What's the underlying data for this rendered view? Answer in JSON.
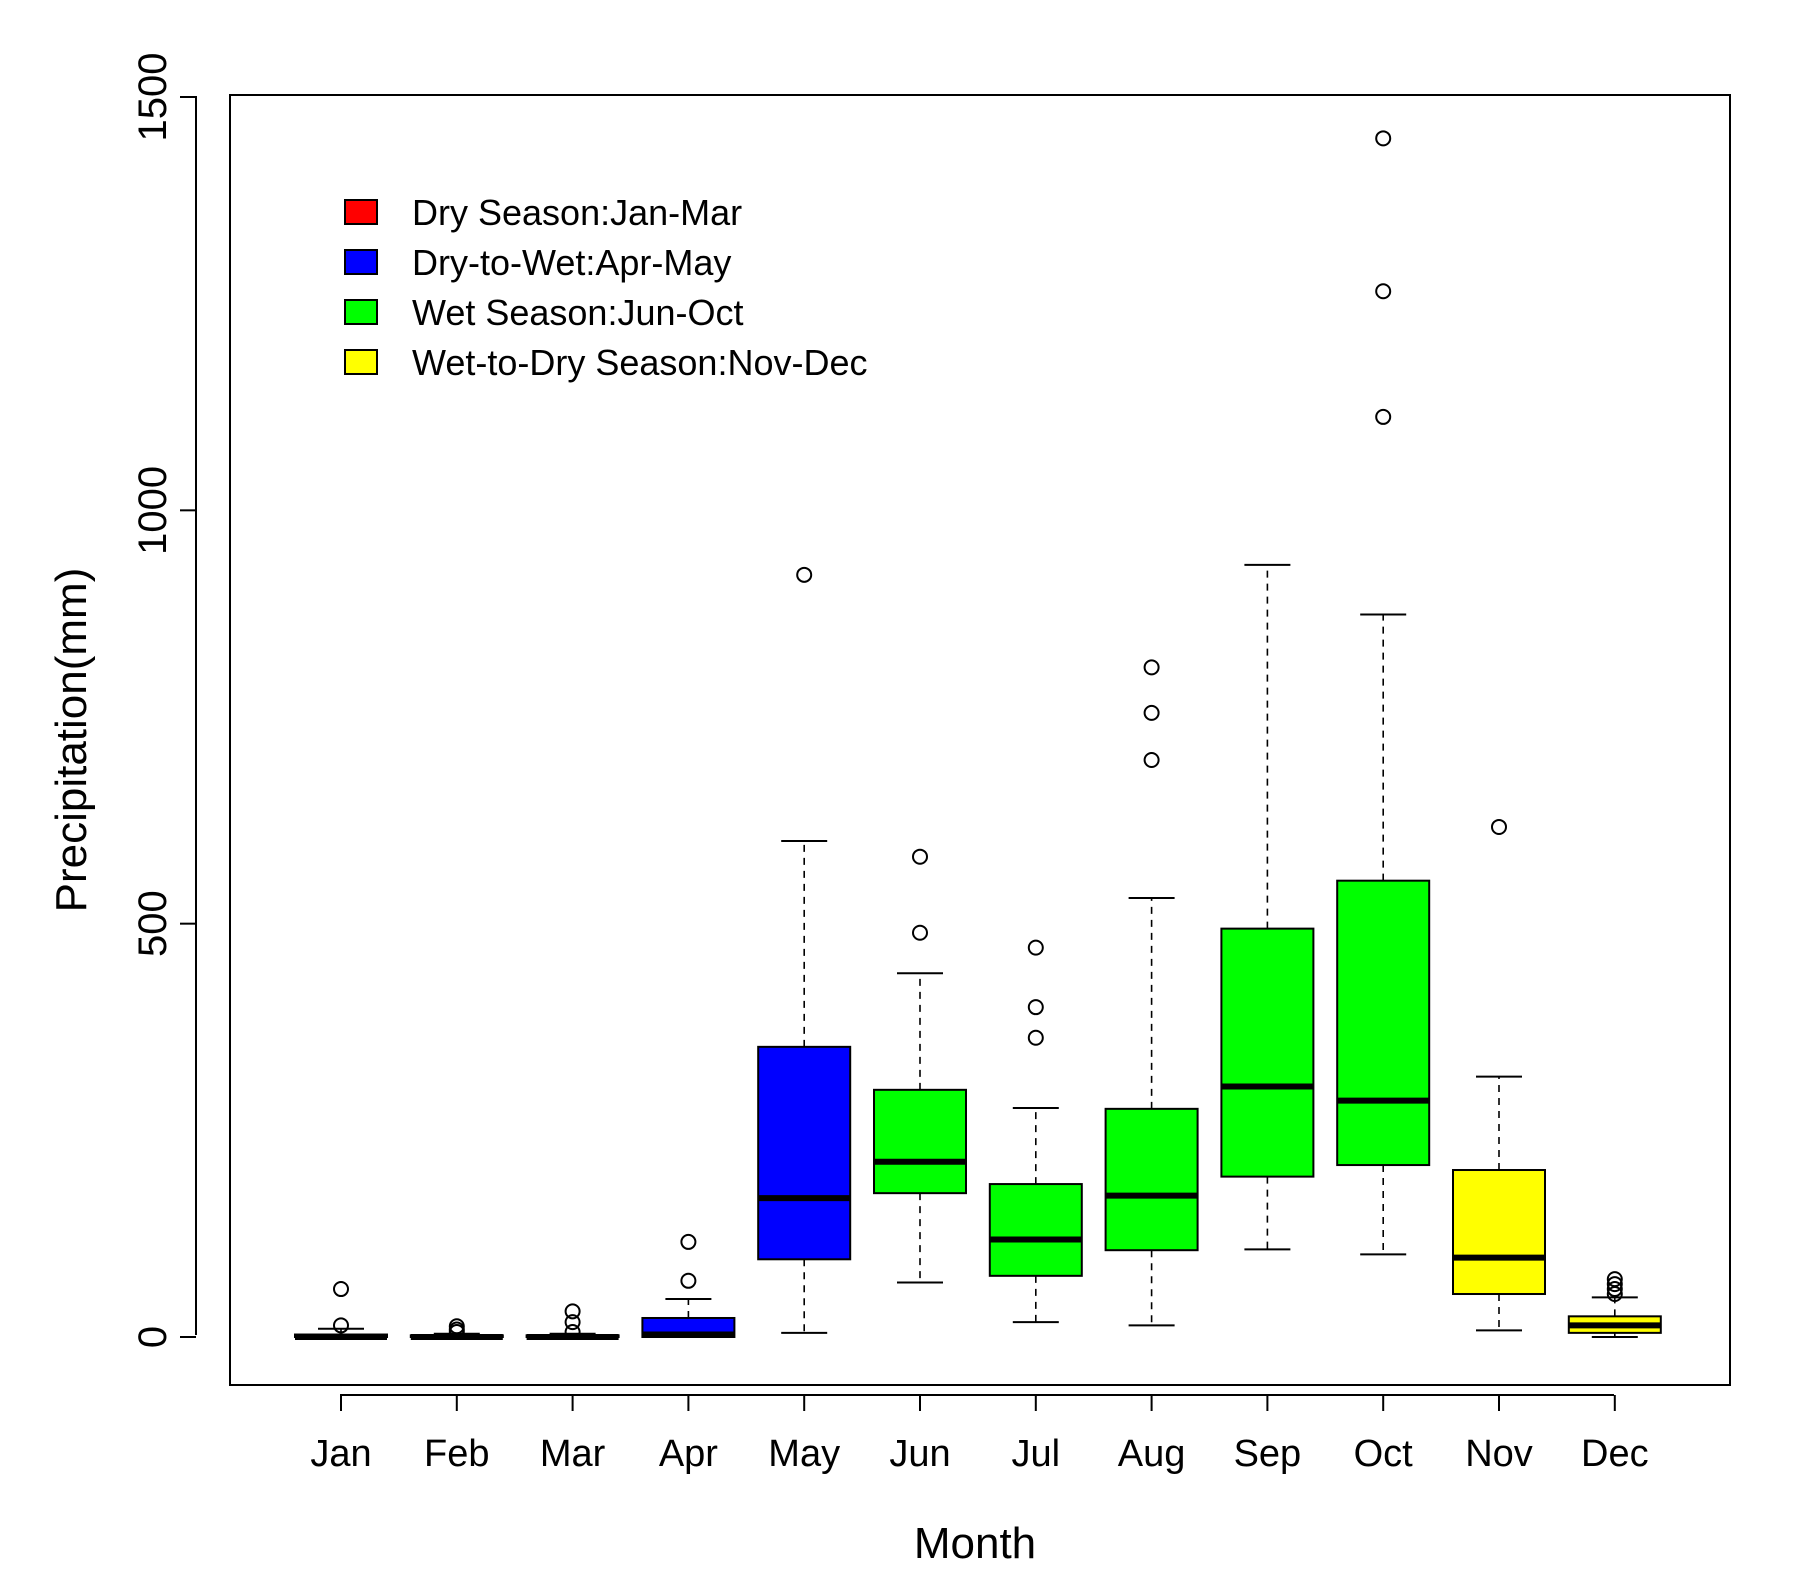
{
  "chart_data": {
    "type": "boxplot",
    "xlabel": "Month",
    "ylabel": "Precipitation(mm)",
    "ylim": [
      -60,
      1500
    ],
    "yticks": [
      0,
      500,
      1000,
      1500
    ],
    "categories": [
      "Jan",
      "Feb",
      "Mar",
      "Apr",
      "May",
      "Jun",
      "Jul",
      "Aug",
      "Sep",
      "Oct",
      "Nov",
      "Dec"
    ],
    "legend": {
      "placement": "top-left",
      "entries": [
        {
          "label": "Dry Season:Jan-Mar",
          "color": "#ff0000"
        },
        {
          "label": "Dry-to-Wet:Apr-May",
          "color": "#0000ff"
        },
        {
          "label": "Wet Season:Jun-Oct",
          "color": "#00ff00"
        },
        {
          "label": "Wet-to-Dry Season:Nov-Dec",
          "color": "#ffff00"
        }
      ]
    },
    "boxes": [
      {
        "month": "Jan",
        "color": "#ff0000",
        "lower_whisker": 0,
        "q1": 0,
        "median": 0,
        "q3": 3,
        "upper_whisker": 10,
        "outliers": [
          14,
          58
        ]
      },
      {
        "month": "Feb",
        "color": "#ff0000",
        "lower_whisker": 0,
        "q1": 0,
        "median": 0,
        "q3": 2,
        "upper_whisker": 4,
        "outliers": [
          6,
          9,
          13
        ]
      },
      {
        "month": "Mar",
        "color": "#ff0000",
        "lower_whisker": 0,
        "q1": 0,
        "median": 0,
        "q3": 2,
        "upper_whisker": 4,
        "outliers": [
          6,
          18,
          31
        ]
      },
      {
        "month": "Apr",
        "color": "#0000ff",
        "lower_whisker": 0,
        "q1": 0,
        "median": 3,
        "q3": 23,
        "upper_whisker": 46,
        "outliers": [
          68,
          115
        ]
      },
      {
        "month": "May",
        "color": "#0000ff",
        "lower_whisker": 5,
        "q1": 94,
        "median": 168,
        "q3": 351,
        "upper_whisker": 600,
        "outliers": [
          922
        ]
      },
      {
        "month": "Jun",
        "color": "#00ff00",
        "lower_whisker": 66,
        "q1": 174,
        "median": 212,
        "q3": 299,
        "upper_whisker": 440,
        "outliers": [
          489,
          581
        ]
      },
      {
        "month": "Jul",
        "color": "#00ff00",
        "lower_whisker": 18,
        "q1": 74,
        "median": 118,
        "q3": 185,
        "upper_whisker": 277,
        "outliers": [
          362,
          399,
          471
        ]
      },
      {
        "month": "Aug",
        "color": "#00ff00",
        "lower_whisker": 14,
        "q1": 105,
        "median": 171,
        "q3": 276,
        "upper_whisker": 531,
        "outliers": [
          698,
          755,
          810
        ]
      },
      {
        "month": "Sep",
        "color": "#00ff00",
        "lower_whisker": 106,
        "q1": 194,
        "median": 303,
        "q3": 494,
        "upper_whisker": 934,
        "outliers": []
      },
      {
        "month": "Oct",
        "color": "#00ff00",
        "lower_whisker": 100,
        "q1": 208,
        "median": 286,
        "q3": 552,
        "upper_whisker": 874,
        "outliers": [
          1113,
          1265,
          1450
        ]
      },
      {
        "month": "Nov",
        "color": "#ffff00",
        "lower_whisker": 8,
        "q1": 52,
        "median": 96,
        "q3": 202,
        "upper_whisker": 315,
        "outliers": [
          617
        ]
      },
      {
        "month": "Dec",
        "color": "#ffff00",
        "lower_whisker": 0,
        "q1": 5,
        "median": 14,
        "q3": 25,
        "upper_whisker": 48,
        "outliers": [
          52,
          58,
          64,
          70
        ]
      }
    ]
  }
}
